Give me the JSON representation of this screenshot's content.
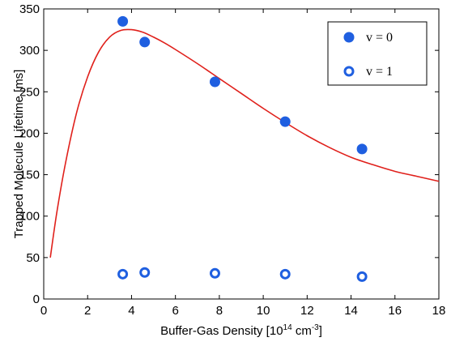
{
  "chart_data": {
    "type": "scatter",
    "xlabel": {
      "main": "Buffer-Gas Density [10",
      "sup1": "14",
      "mid": " cm",
      "sup2": "-3",
      "end": "]"
    },
    "ylabel": "Trapped Molecule Lifetime [ms]",
    "xlim": [
      0,
      18
    ],
    "ylim": [
      0,
      350
    ],
    "xticks": [
      0,
      2,
      4,
      6,
      8,
      10,
      12,
      14,
      16,
      18
    ],
    "yticks": [
      0,
      50,
      100,
      150,
      200,
      250,
      300,
      350
    ],
    "grid": false,
    "legend_position": "top-right",
    "series": [
      {
        "name": "v = 0",
        "marker": "filled-circle",
        "color": "#1f5fe0",
        "x": [
          3.6,
          4.6,
          7.8,
          11.0,
          14.5
        ],
        "y": [
          335,
          310,
          262,
          214,
          181
        ]
      },
      {
        "name": "v = 1",
        "marker": "open-circle",
        "color": "#1f5fe0",
        "x": [
          3.6,
          4.6,
          7.8,
          11.0,
          14.5
        ],
        "y": [
          30,
          32,
          31,
          30,
          27
        ]
      }
    ],
    "fit_curve": {
      "color": "#e0201b",
      "x": [
        0.3,
        0.6,
        1.0,
        1.5,
        2.0,
        2.5,
        3.0,
        3.5,
        4.0,
        4.5,
        5.0,
        5.5,
        6.0,
        7.0,
        8.0,
        9.0,
        10.0,
        11.0,
        12.0,
        13.0,
        14.0,
        15.0,
        16.0,
        17.0,
        18.0
      ],
      "y": [
        50,
        105,
        165,
        225,
        268,
        298,
        316,
        324,
        325,
        322,
        316,
        309,
        301,
        284,
        266,
        248,
        230,
        213,
        197,
        183,
        171,
        162,
        154,
        148,
        142
      ]
    }
  }
}
